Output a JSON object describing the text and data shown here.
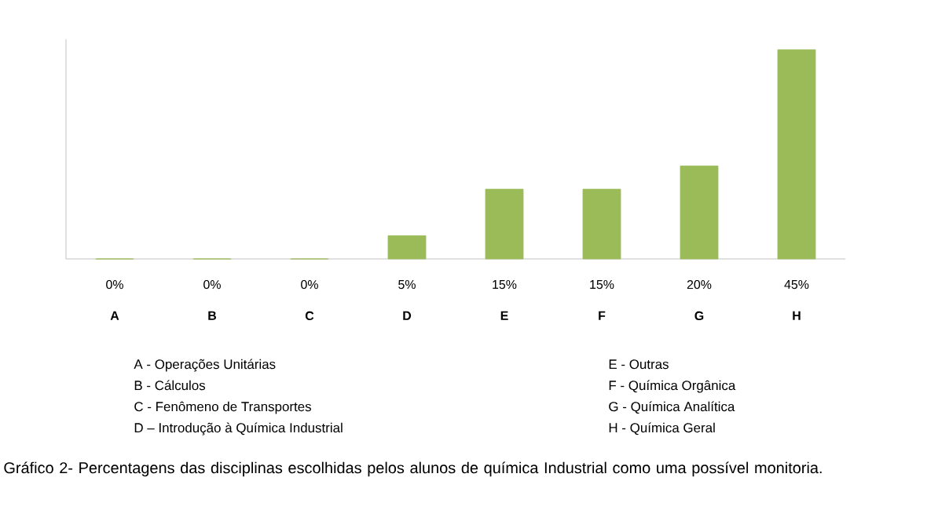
{
  "chart_data": {
    "type": "bar",
    "categories": [
      "A",
      "B",
      "C",
      "D",
      "E",
      "F",
      "G",
      "H"
    ],
    "values": [
      0,
      0,
      0,
      5,
      15,
      15,
      20,
      45
    ],
    "value_labels": [
      "0%",
      "0%",
      "0%",
      "5%",
      "15%",
      "15%",
      "20%",
      "45%"
    ],
    "color": "#9bbb59",
    "annotations": [
      "A - Operações Unitárias",
      "B - Cálculos",
      "C - Fenômeno de Transportes",
      "D – Introdução à Química Industrial",
      "E - Outras",
      "F - Química Orgânica",
      "G - Química Analítica",
      "H - Química Geral",
      "Gráfico 2- Percentagens das disciplinas escolhidas pelos alunos de química Industrial como uma possível monitoria."
    ]
  }
}
